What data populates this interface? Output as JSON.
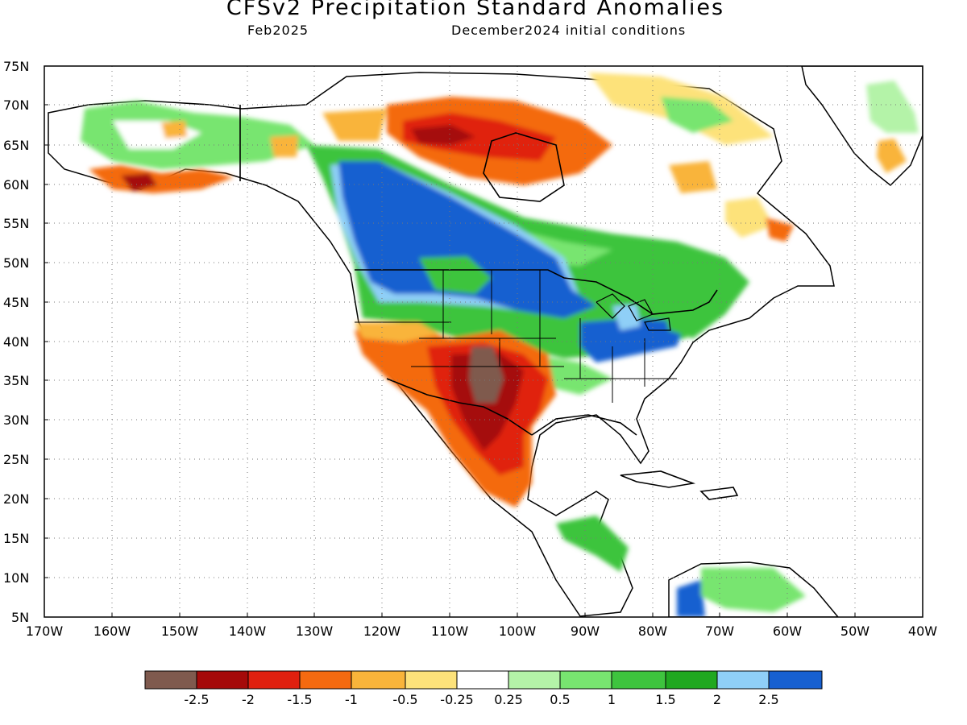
{
  "title": "CFSv2 Precipitation Standard Anomalies",
  "subtitle_left": "Feb2025",
  "subtitle_right": "December2024 initial conditions",
  "lat_labels": [
    "75N",
    "70N",
    "65N",
    "60N",
    "55N",
    "50N",
    "45N",
    "40N",
    "35N",
    "30N",
    "25N",
    "20N",
    "15N",
    "10N",
    "5N"
  ],
  "lon_labels": [
    "170W",
    "160W",
    "150W",
    "140W",
    "130W",
    "120W",
    "110W",
    "100W",
    "90W",
    "80W",
    "70W",
    "60W",
    "50W",
    "40W"
  ],
  "colorbar": {
    "labels": [
      "-2.5",
      "-2",
      "-1.5",
      "-1",
      "-0.5",
      "-0.25",
      "0.25",
      "0.5",
      "1",
      "1.5",
      "2",
      "2.5"
    ],
    "colors": [
      "#7f5a4e",
      "#a50a0a",
      "#e0200f",
      "#f46a10",
      "#f9b43a",
      "#fde27a",
      "#ffffff",
      "#b4f3a8",
      "#78e570",
      "#3ec43e",
      "#20a820",
      "#8fcff7",
      "#1760d0"
    ]
  }
}
